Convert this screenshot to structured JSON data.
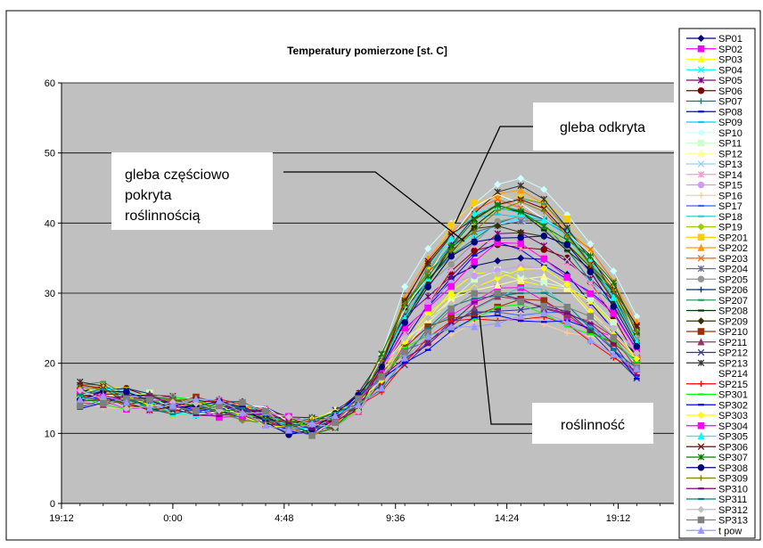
{
  "chart_data": {
    "type": "line",
    "title": "Temperatury  pomierzone [st. C]",
    "xlabel": "",
    "ylabel": "",
    "ylim": [
      0,
      60
    ],
    "yticks": [
      0,
      10,
      20,
      30,
      40,
      50,
      60
    ],
    "x_tick_labels": [
      "19:12",
      "0:00",
      "4:48",
      "9:36",
      "14:24",
      "19:12"
    ],
    "x_tick_hours": [
      19.2,
      24,
      28.8,
      33.6,
      38.4,
      43.2
    ],
    "xlim_hours": [
      19.2,
      45.6
    ],
    "grid": true,
    "legend_position": "right",
    "x_hours": [
      20,
      21,
      22,
      23,
      24,
      25,
      26,
      27,
      28,
      29,
      30,
      31,
      32,
      33,
      34,
      35,
      36,
      37,
      38,
      39,
      40,
      41,
      42,
      43,
      44
    ],
    "base_profile": [
      15.5,
      15.6,
      15.0,
      14.5,
      14.0,
      13.8,
      13.6,
      13.2,
      12.4,
      11.2,
      11.0,
      12.0,
      14.5,
      19.0,
      25.0,
      29.0,
      32.5,
      35.0,
      36.5,
      36.5,
      35.5,
      33.5,
      30.5,
      27.0,
      22.0
    ],
    "series": [
      {
        "name": "SP01",
        "color": "#000080",
        "marker": "diamond",
        "peak": 35
      },
      {
        "name": "SP02",
        "color": "#ff00ff",
        "marker": "square",
        "peak": 30
      },
      {
        "name": "SP03",
        "color": "#ffff00",
        "marker": "triangle",
        "peak": 33
      },
      {
        "name": "SP04",
        "color": "#00ffff",
        "marker": "x",
        "peak": 41
      },
      {
        "name": "SP05",
        "color": "#800080",
        "marker": "star",
        "peak": 38
      },
      {
        "name": "SP06",
        "color": "#800000",
        "marker": "circle",
        "peak": 37
      },
      {
        "name": "SP07",
        "color": "#008080",
        "marker": "plus",
        "peak": 40
      },
      {
        "name": "SP08",
        "color": "#0000ff",
        "marker": "dash",
        "peak": 36
      },
      {
        "name": "SP09",
        "color": "#00ccff",
        "marker": "dash",
        "peak": 42
      },
      {
        "name": "SP10",
        "color": "#ccffff",
        "marker": "diamond",
        "peak": 46
      },
      {
        "name": "SP11",
        "color": "#ccffcc",
        "marker": "square",
        "peak": 33
      },
      {
        "name": "SP12",
        "color": "#ffff99",
        "marker": "triangle",
        "peak": 32
      },
      {
        "name": "SP13",
        "color": "#99ccff",
        "marker": "x",
        "peak": 39
      },
      {
        "name": "SP14",
        "color": "#ff99cc",
        "marker": "star",
        "peak": 37
      },
      {
        "name": "SP15",
        "color": "#cc99ff",
        "marker": "circle",
        "peak": 34
      },
      {
        "name": "SP16",
        "color": "#ffcc99",
        "marker": "plus",
        "peak": 27
      },
      {
        "name": "SP17",
        "color": "#3366ff",
        "marker": "dash",
        "peak": 28
      },
      {
        "name": "SP18",
        "color": "#33cccc",
        "marker": "dash",
        "peak": 30
      },
      {
        "name": "SP19",
        "color": "#99cc00",
        "marker": "diamond",
        "peak": 41
      },
      {
        "name": "SP201",
        "color": "#ffcc00",
        "marker": "square",
        "peak": 44
      },
      {
        "name": "SP202",
        "color": "#ff9900",
        "marker": "triangle",
        "peak": 44
      },
      {
        "name": "SP203",
        "color": "#ff6600",
        "marker": "x",
        "peak": 43
      },
      {
        "name": "SP204",
        "color": "#666699",
        "marker": "star",
        "peak": 41
      },
      {
        "name": "SP205",
        "color": "#969696",
        "marker": "circle",
        "peak": 40
      },
      {
        "name": "SP206",
        "color": "#003366",
        "marker": "plus",
        "peak": 42
      },
      {
        "name": "SP207",
        "color": "#339966",
        "marker": "dash",
        "peak": 43
      },
      {
        "name": "SP208",
        "color": "#003300",
        "marker": "dash",
        "peak": 41
      },
      {
        "name": "SP209",
        "color": "#333300",
        "marker": "diamond",
        "peak": 40
      },
      {
        "name": "SP210",
        "color": "#993300",
        "marker": "square",
        "peak": 29
      },
      {
        "name": "SP211",
        "color": "#993366",
        "marker": "triangle",
        "peak": 29
      },
      {
        "name": "SP212",
        "color": "#333399",
        "marker": "x",
        "peak": 28
      },
      {
        "name": "SP213",
        "color": "#333333",
        "marker": "star",
        "peak": 44
      },
      {
        "name": "SP214",
        "color": "#ffffff",
        "marker": "none",
        "peak": 43
      },
      {
        "name": "SP215",
        "color": "#ff0000",
        "marker": "plus",
        "peak": 27
      },
      {
        "name": "SP301",
        "color": "#00ff00",
        "marker": "dash",
        "peak": 28
      },
      {
        "name": "SP302",
        "color": "#0000ff",
        "marker": "dash",
        "peak": 27
      },
      {
        "name": "SP303",
        "color": "#ffff00",
        "marker": "diamond",
        "peak": 33
      },
      {
        "name": "SP304",
        "color": "#ff00ff",
        "marker": "square",
        "peak": 36
      },
      {
        "name": "SP305",
        "color": "#00ffff",
        "marker": "triangle",
        "peak": 42
      },
      {
        "name": "SP306",
        "color": "#800000",
        "marker": "x",
        "peak": 43
      },
      {
        "name": "SP307",
        "color": "#008000",
        "marker": "star",
        "peak": 42
      },
      {
        "name": "SP308",
        "color": "#000080",
        "marker": "circle",
        "peak": 39
      },
      {
        "name": "SP309",
        "color": "#808000",
        "marker": "plus",
        "peak": 42
      },
      {
        "name": "SP310",
        "color": "#800080",
        "marker": "dash",
        "peak": 29
      },
      {
        "name": "SP311",
        "color": "#008080",
        "marker": "dash",
        "peak": 30
      },
      {
        "name": "SP312",
        "color": "#c0c0c0",
        "marker": "diamond",
        "peak": 32
      },
      {
        "name": "SP313",
        "color": "#808080",
        "marker": "square",
        "peak": 30
      },
      {
        "name": "t pow",
        "color": "#9999ff",
        "marker": "triangle",
        "peak": 27
      }
    ],
    "annotations": [
      {
        "text": "gleba odkryta"
      },
      {
        "text": "gleba częściowo pokryta roślinnością"
      },
      {
        "text": "roślinność"
      }
    ]
  }
}
